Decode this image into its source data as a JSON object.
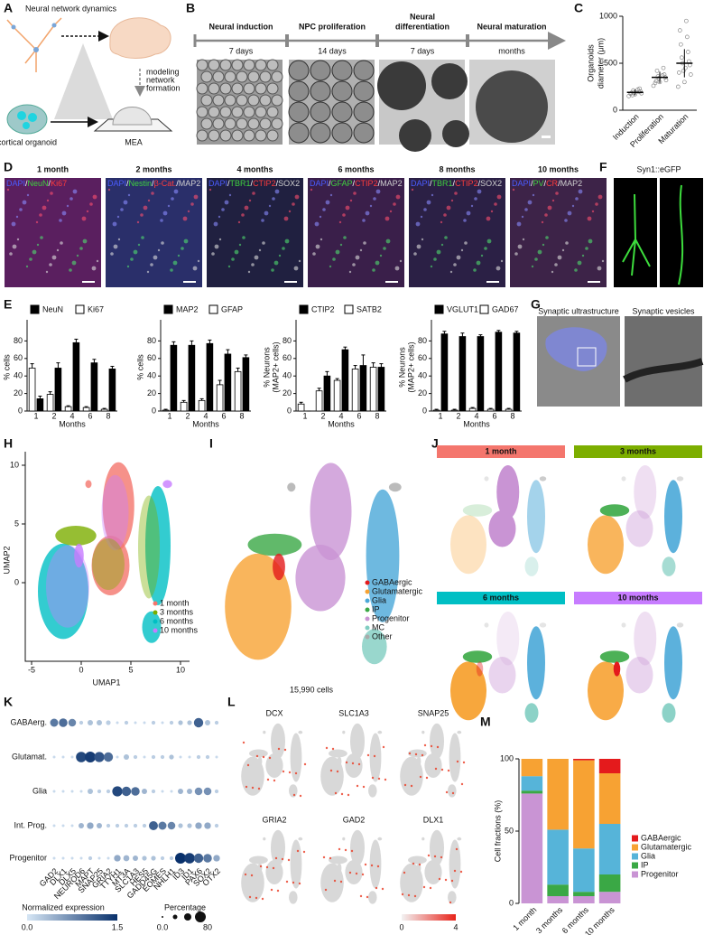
{
  "panel_labels": [
    "A",
    "B",
    "C",
    "D",
    "E",
    "F",
    "G",
    "H",
    "I",
    "J",
    "K",
    "L",
    "M"
  ],
  "panel_a": {
    "title": "Neural network dynamics",
    "side_label": [
      "modeling",
      "network",
      "formation"
    ],
    "organoid": "cortical organoid",
    "device": "MEA"
  },
  "panel_b": {
    "stages": [
      {
        "name": [
          "Neural induction"
        ],
        "duration": "7 days"
      },
      {
        "name": [
          "NPC proliferation"
        ],
        "duration": "14 days"
      },
      {
        "name": [
          "Neural",
          "differentiation"
        ],
        "duration": "7 days"
      },
      {
        "name": [
          "Neural maturation"
        ],
        "duration": "months"
      }
    ]
  },
  "panel_d": {
    "separator": "/",
    "images": [
      {
        "time": "1 month",
        "stain": [
          {
            "text": "DAPI",
            "color": "#4a5cff"
          },
          {
            "text": "NeuN",
            "color": "#3fd13f"
          },
          {
            "text": "Ki67",
            "color": "#ff3b3b"
          }
        ]
      },
      {
        "time": "2 months",
        "stain": [
          {
            "text": "DAPI",
            "color": "#4a5cff"
          },
          {
            "text": "Nestin",
            "color": "#3fd13f"
          },
          {
            "text": "β-Cat.",
            "color": "#ff3b3b"
          },
          {
            "text": "MAP2",
            "color": "#cfcfcf"
          }
        ]
      },
      {
        "time": "4 months",
        "stain": [
          {
            "text": "DAPI",
            "color": "#4a5cff"
          },
          {
            "text": "TBR1",
            "color": "#3fd13f"
          },
          {
            "text": "CTIP2",
            "color": "#ff3b3b"
          },
          {
            "text": "SOX2",
            "color": "#cfcfcf"
          }
        ]
      },
      {
        "time": "6 months",
        "stain": [
          {
            "text": "DAPI",
            "color": "#4a5cff"
          },
          {
            "text": "GFAP",
            "color": "#3fd13f"
          },
          {
            "text": "CTIP2",
            "color": "#ff3b3b"
          },
          {
            "text": "MAP2",
            "color": "#cfcfcf"
          }
        ]
      },
      {
        "time": "8 months",
        "stain": [
          {
            "text": "DAPI",
            "color": "#4a5cff"
          },
          {
            "text": "TBR1",
            "color": "#3fd13f"
          },
          {
            "text": "CTIP2",
            "color": "#ff3b3b"
          },
          {
            "text": "SOX2",
            "color": "#cfcfcf"
          }
        ]
      },
      {
        "time": "10 months",
        "stain": [
          {
            "text": "DAPI",
            "color": "#4a5cff"
          },
          {
            "text": "PV",
            "color": "#3fd13f"
          },
          {
            "text": "CR",
            "color": "#ff3b3b"
          },
          {
            "text": "MAP2",
            "color": "#cfcfcf"
          }
        ]
      }
    ]
  },
  "panel_f": {
    "label": "Syn1::eGFP"
  },
  "panel_g": {
    "labels": [
      "Synaptic ultrastructure",
      "Synaptic vesicles"
    ]
  },
  "panel_h": {
    "xlabel": "UMAP1",
    "ylabel": "UMAP2",
    "xticks": [
      -5,
      0,
      5,
      10
    ],
    "yticks": [
      0,
      5,
      10
    ],
    "legend": [
      {
        "name": "1 month",
        "color": "#f4766d"
      },
      {
        "name": "3 months",
        "color": "#7cae00"
      },
      {
        "name": "6 months",
        "color": "#00bfc4"
      },
      {
        "name": "10 months",
        "color": "#c77cff"
      }
    ]
  },
  "panel_i": {
    "note": "15,990 cells",
    "legend": [
      {
        "name": "GABAergic",
        "color": "#e41a1c"
      },
      {
        "name": "Glutamatergic",
        "color": "#f7a233"
      },
      {
        "name": "Glia",
        "color": "#4aa8d8"
      },
      {
        "name": "IP",
        "color": "#3aa845"
      },
      {
        "name": "Progenitor",
        "color": "#c994d4"
      },
      {
        "name": "MC",
        "color": "#80cdc1"
      },
      {
        "name": "Other",
        "color": "#aaaaaa"
      }
    ]
  },
  "panel_j": {
    "titles": [
      {
        "text": "1 month",
        "color": "#f4766d"
      },
      {
        "text": "3 months",
        "color": "#7cae00"
      },
      {
        "text": "6 months",
        "color": "#00bfc4"
      },
      {
        "text": "10 months",
        "color": "#c77cff"
      }
    ]
  },
  "panel_k": {
    "rows": [
      "GABAerg.",
      "Glutamat.",
      "Glia",
      "Int. Prog.",
      "Progenitor"
    ],
    "genes": [
      "GAD2",
      "DLX1",
      "DLX5",
      "NEUROD6",
      "MAPT",
      "SNAP25",
      "GRIA2",
      "TTYH1",
      "MT3A",
      "SLC1A3",
      "HES5",
      "GADD45G",
      "EOMES",
      "NHLH1",
      "ID3",
      "ID1",
      "PAX6",
      "SOX2",
      "OTX2"
    ],
    "percent": [
      [
        45,
        50,
        40,
        10,
        20,
        20,
        15,
        5,
        10,
        5,
        5,
        10,
        5,
        10,
        15,
        15,
        60,
        20,
        10
      ],
      [
        5,
        5,
        5,
        75,
        80,
        70,
        60,
        5,
        20,
        10,
        5,
        10,
        10,
        15,
        5,
        5,
        10,
        10,
        5
      ],
      [
        5,
        5,
        5,
        5,
        20,
        10,
        10,
        70,
        60,
        50,
        20,
        10,
        5,
        5,
        20,
        20,
        40,
        40,
        10
      ],
      [
        5,
        5,
        5,
        20,
        30,
        20,
        10,
        10,
        10,
        10,
        10,
        55,
        45,
        40,
        15,
        15,
        30,
        30,
        10
      ],
      [
        5,
        5,
        5,
        5,
        10,
        5,
        5,
        30,
        25,
        20,
        15,
        15,
        10,
        10,
        80,
        75,
        60,
        50,
        30
      ]
    ],
    "expression": [
      [
        0.9,
        1.0,
        0.8,
        0.2,
        0.3,
        0.3,
        0.2,
        0.1,
        0.2,
        0.1,
        0.1,
        0.2,
        0.1,
        0.2,
        0.3,
        0.3,
        1.1,
        0.3,
        0.2
      ],
      [
        0.1,
        0.1,
        0.1,
        1.3,
        1.4,
        1.2,
        1.0,
        0.1,
        0.3,
        0.2,
        0.1,
        0.2,
        0.2,
        0.3,
        0.1,
        0.1,
        0.2,
        0.2,
        0.1
      ],
      [
        0.1,
        0.1,
        0.1,
        0.1,
        0.3,
        0.2,
        0.2,
        1.3,
        1.1,
        1.0,
        0.4,
        0.2,
        0.1,
        0.1,
        0.4,
        0.4,
        0.7,
        0.7,
        0.2
      ],
      [
        0.1,
        0.1,
        0.1,
        0.4,
        0.5,
        0.4,
        0.2,
        0.2,
        0.2,
        0.2,
        0.2,
        1.1,
        0.9,
        0.8,
        0.3,
        0.3,
        0.5,
        0.5,
        0.2
      ],
      [
        0.1,
        0.1,
        0.1,
        0.1,
        0.2,
        0.1,
        0.1,
        0.5,
        0.4,
        0.4,
        0.3,
        0.3,
        0.2,
        0.2,
        1.5,
        1.4,
        1.1,
        0.9,
        0.5
      ]
    ],
    "color_title": "Normalized expression",
    "color_ticks": [
      "0.0",
      "1.5"
    ],
    "size_title": "Percentage",
    "size_ticks": [
      "0.0",
      "80"
    ]
  },
  "panel_l": {
    "genes": [
      "DCX",
      "SLC1A3",
      "SNAP25",
      "GRIA2",
      "GAD2",
      "DLX1"
    ],
    "scale_ticks": [
      "0",
      "4"
    ]
  },
  "chart_data": [
    {
      "type": "strip",
      "categories": [
        "Induction",
        "Proliferation",
        "Maturation"
      ],
      "ylabel": [
        "Organoids",
        "diameter (μm)"
      ],
      "ylim": [
        0,
        1000
      ],
      "yticks": [
        0,
        500,
        1000
      ],
      "color": "#888888",
      "points": [
        [
          150,
          170,
          180,
          190,
          200,
          210,
          230,
          160,
          195,
          185,
          220,
          175
        ],
        [
          260,
          300,
          320,
          340,
          350,
          360,
          380,
          420,
          450,
          310,
          370,
          290
        ],
        [
          250,
          300,
          380,
          420,
          480,
          500,
          520,
          560,
          620,
          700,
          780,
          850,
          950,
          400,
          450
        ]
      ],
      "means": [
        190,
        350,
        500
      ],
      "sd": [
        30,
        60,
        150
      ]
    },
    {
      "type": "bar",
      "categories": [
        "1",
        "2",
        "4",
        "6",
        "8"
      ],
      "xlabel": "Months",
      "ylabel": [
        "% cells"
      ],
      "ylim": [
        0,
        100
      ],
      "yticks": [
        0,
        20,
        40,
        60,
        80
      ],
      "series": [
        {
          "name": "NeuN",
          "color": "#000000",
          "values": [
            14,
            49,
            78,
            55,
            48
          ],
          "errors": [
            3,
            6,
            4,
            4,
            3
          ]
        },
        {
          "name": "Ki67",
          "color": "#ffffff",
          "values": [
            49,
            19,
            5,
            4,
            2
          ],
          "errors": [
            5,
            3,
            1,
            1,
            1
          ]
        }
      ]
    },
    {
      "type": "bar",
      "categories": [
        "1",
        "2",
        "4",
        "6",
        "8"
      ],
      "xlabel": "Months",
      "ylabel": [
        "% cells"
      ],
      "ylim": [
        0,
        100
      ],
      "yticks": [
        0,
        20,
        40,
        60,
        80
      ],
      "series": [
        {
          "name": "MAP2",
          "color": "#000000",
          "values": [
            75,
            75,
            77,
            65,
            61
          ],
          "errors": [
            4,
            5,
            4,
            5,
            3
          ]
        },
        {
          "name": "GFAP",
          "color": "#ffffff",
          "values": [
            1,
            10,
            12,
            30,
            45
          ],
          "errors": [
            1,
            2,
            2,
            5,
            4
          ]
        }
      ]
    },
    {
      "type": "bar",
      "categories": [
        "1",
        "2",
        "4",
        "6",
        "8"
      ],
      "xlabel": "Months",
      "ylabel": [
        "% Neurons",
        "(MAP2+ cells)"
      ],
      "ylim": [
        0,
        100
      ],
      "yticks": [
        0,
        20,
        40,
        60,
        80
      ],
      "series": [
        {
          "name": "CTIP2",
          "color": "#000000",
          "values": [
            0,
            40,
            70,
            52,
            50
          ],
          "errors": [
            0,
            5,
            3,
            12,
            4
          ]
        },
        {
          "name": "SATB2",
          "color": "#ffffff",
          "values": [
            8,
            23,
            35,
            48,
            50
          ],
          "errors": [
            2,
            3,
            2,
            4,
            5
          ]
        }
      ]
    },
    {
      "type": "bar",
      "categories": [
        "1",
        "2",
        "4",
        "6",
        "8"
      ],
      "xlabel": "Months",
      "ylabel": [
        "% Neurons",
        "(MAP2+ cells)"
      ],
      "ylim": [
        0,
        100
      ],
      "yticks": [
        0,
        20,
        40,
        60,
        80
      ],
      "series": [
        {
          "name": "VGLUT1",
          "color": "#000000",
          "values": [
            88,
            85,
            85,
            90,
            89
          ],
          "errors": [
            3,
            4,
            2,
            2,
            2
          ]
        },
        {
          "name": "GAD67",
          "color": "#ffffff",
          "values": [
            1,
            1,
            3,
            2,
            2
          ],
          "errors": [
            1,
            1,
            1,
            1,
            1
          ]
        }
      ]
    },
    {
      "type": "stacked",
      "categories": [
        "1 month",
        "3 months",
        "6 months",
        "10 months"
      ],
      "ylabel": "Cell fractions (%)",
      "ylim": [
        0,
        100
      ],
      "yticks": [
        0,
        50,
        100
      ],
      "series": [
        {
          "name": "Progenitor",
          "color": "#c994d4",
          "values": [
            76,
            5,
            5,
            8
          ]
        },
        {
          "name": "IP",
          "color": "#3aa845",
          "values": [
            2,
            8,
            3,
            12
          ]
        },
        {
          "name": "Glia",
          "color": "#56b4d9",
          "values": [
            10,
            38,
            30,
            35
          ]
        },
        {
          "name": "Glutamatergic",
          "color": "#f7a233",
          "values": [
            12,
            49,
            61,
            35
          ]
        },
        {
          "name": "GABAergic",
          "color": "#e41a1c",
          "values": [
            0,
            0,
            1,
            10
          ]
        }
      ]
    }
  ]
}
